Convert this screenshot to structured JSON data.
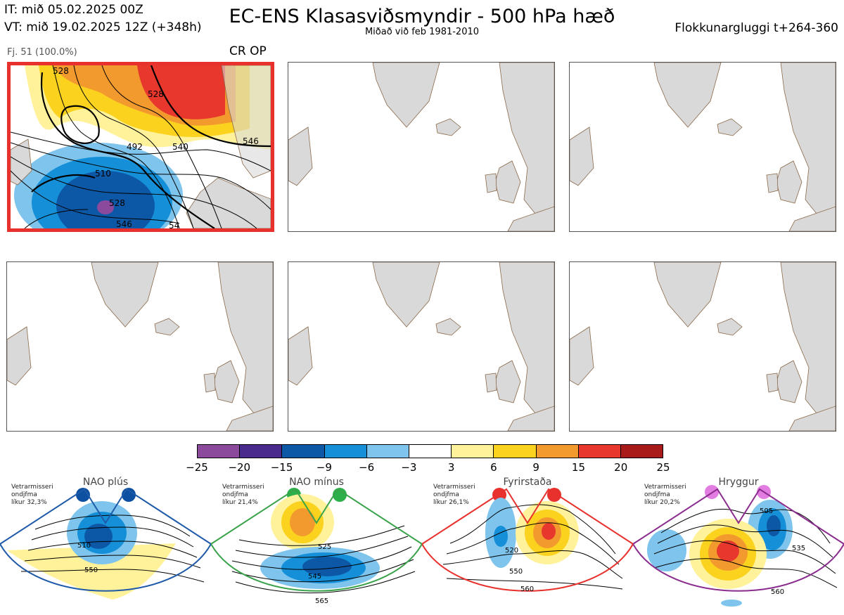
{
  "header": {
    "it_line": "IT: mið 05.02.2025 00Z",
    "vt_line": "VT: mið 19.02.2025 12Z  (+348h)",
    "title": "EC-ENS Klasasviðsmyndir - 500 hPa hæð",
    "subtitle": "Miðað við feb 1981-2010",
    "window_label": "Flokkunargluggi t+264-360"
  },
  "top_panel": {
    "member_label": "Fj. 51 (100.0%)",
    "tag_label": "CR OP",
    "contour_labels": [
      "528",
      "528",
      "492",
      "540",
      "546",
      "510",
      "528",
      "546",
      "54"
    ]
  },
  "colorbar": {
    "ticks": [
      "−25",
      "−20",
      "−15",
      "−9",
      "−6",
      "−3",
      "3",
      "6",
      "9",
      "15",
      "20",
      "25"
    ],
    "colors": [
      "#8b4a9c",
      "#4a2a8c",
      "#0d58a6",
      "#1590d8",
      "#7ec4ec",
      "#ffffff",
      "#fff29a",
      "#fbd31f",
      "#f39a2e",
      "#e8372c",
      "#a91a1a"
    ]
  },
  "regimes": [
    {
      "name": "NAO plús",
      "line1": "Vetrarmisseri",
      "line2": "ondjfma",
      "line3": "líkur 32,3%",
      "frame_color": "#1e5aa8",
      "dot_color": "#0d4fa0",
      "labels": [
        "510",
        "550"
      ]
    },
    {
      "name": "NAO mínus",
      "line1": "Vetrarmisseri",
      "line2": "ondjfma",
      "line3": "líkur 21,4%",
      "frame_color": "#3aa24a",
      "dot_color": "#2bb04a",
      "labels": [
        "525",
        "545",
        "565"
      ]
    },
    {
      "name": "Fyrirstaða",
      "line1": "Vetrarmisseri",
      "line2": "ondjfma",
      "line3": "líkur 26,1%",
      "frame_color": "#e8302c",
      "dot_color": "#e8302c",
      "labels": [
        "520",
        "550",
        "560"
      ]
    },
    {
      "name": "Hryggur",
      "line1": "Vetrarmisseri",
      "line2": "ondjfma",
      "line3": "líkur 20,2%",
      "frame_color": "#8a2c8e",
      "dot_color": "#e37ce0",
      "labels": [
        "505",
        "535",
        "560"
      ]
    }
  ]
}
